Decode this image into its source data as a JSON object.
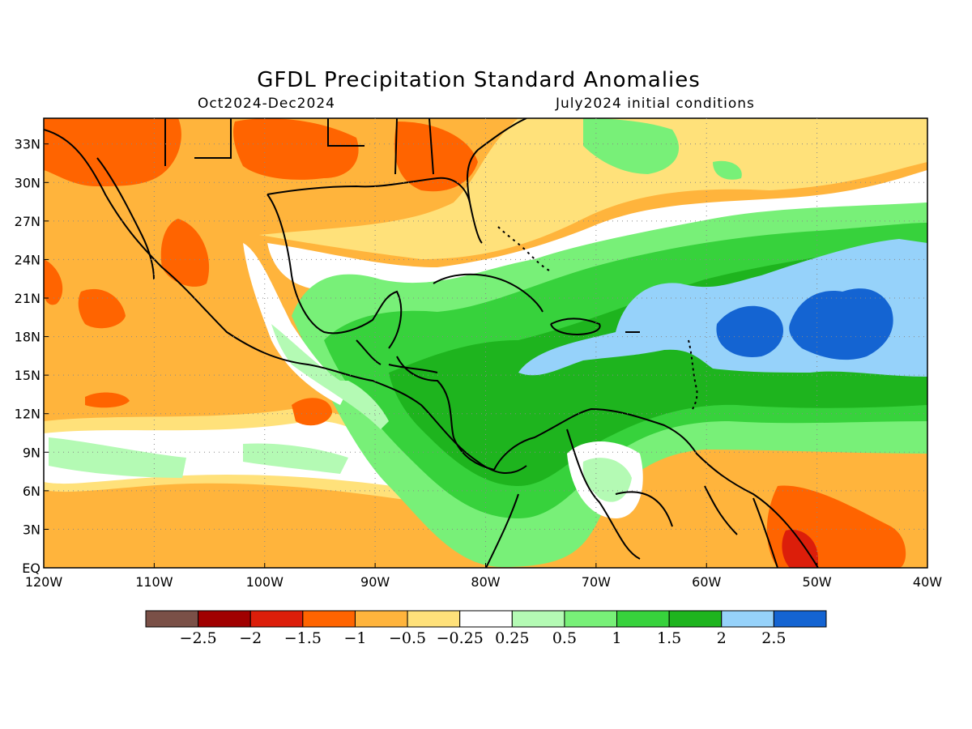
{
  "title": "GFDL Precipitation Standard Anomalies",
  "subtitle_left": "Oct2024-Dec2024",
  "subtitle_right": "July2024 initial conditions",
  "map": {
    "lon_range": [
      -120,
      -40
    ],
    "lat_range": [
      0,
      35
    ],
    "lat_ticks": [
      {
        "value": 33,
        "label": "33N"
      },
      {
        "value": 30,
        "label": "30N"
      },
      {
        "value": 27,
        "label": "27N"
      },
      {
        "value": 24,
        "label": "24N"
      },
      {
        "value": 21,
        "label": "21N"
      },
      {
        "value": 18,
        "label": "18N"
      },
      {
        "value": 15,
        "label": "15N"
      },
      {
        "value": 12,
        "label": "12N"
      },
      {
        "value": 9,
        "label": "9N"
      },
      {
        "value": 6,
        "label": "6N"
      },
      {
        "value": 3,
        "label": "3N"
      },
      {
        "value": 0,
        "label": "EQ"
      }
    ],
    "lon_ticks": [
      {
        "value": -120,
        "label": "120W"
      },
      {
        "value": -110,
        "label": "110W"
      },
      {
        "value": -100,
        "label": "100W"
      },
      {
        "value": -90,
        "label": "90W"
      },
      {
        "value": -80,
        "label": "80W"
      },
      {
        "value": -70,
        "label": "70W"
      },
      {
        "value": -60,
        "label": "60W"
      },
      {
        "value": -50,
        "label": "50W"
      },
      {
        "value": -40,
        "label": "40W"
      }
    ],
    "gridlines": "dotted"
  },
  "colorbar": {
    "colors": [
      "#7a5047",
      "#a00000",
      "#dc1e0a",
      "#ff6400",
      "#ffb43c",
      "#ffe17a",
      "#ffffff",
      "#b4fab4",
      "#78f078",
      "#37d23c",
      "#1eb41e",
      "#96d2fa",
      "#1464d2"
    ],
    "labels": [
      "-2.5",
      "-2",
      "-1.5",
      "-1",
      "-0.5",
      "-0.25",
      "0.25",
      "0.5",
      "1",
      "1.5",
      "2",
      "2.5"
    ]
  }
}
